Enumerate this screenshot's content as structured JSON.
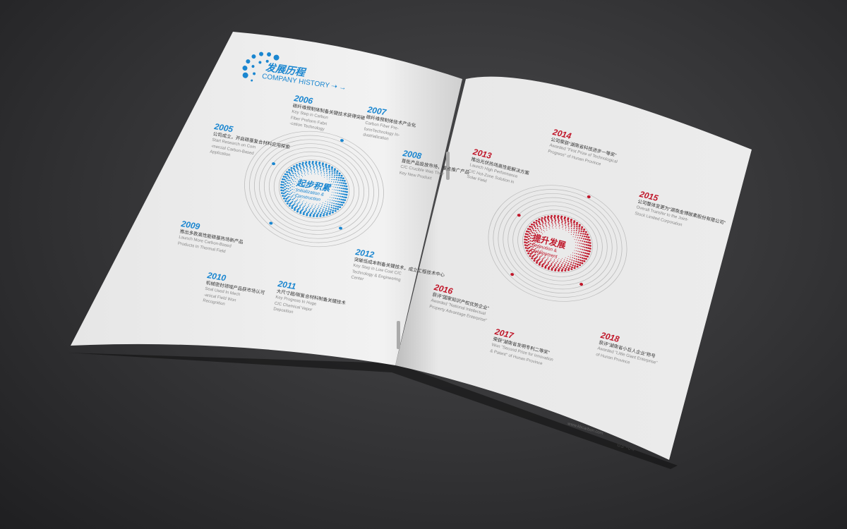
{
  "colors": {
    "blue": "#1a86d0",
    "red": "#c0172a",
    "paper": "#eeeeee",
    "background": "#333335"
  },
  "header": {
    "title_cn": "发展历程",
    "title_en": "COMPANY HISTORY",
    "arrow_icon": "arrow-right-icon"
  },
  "left_circle": {
    "cn": "起步积累",
    "en1": "Initialization &",
    "en2": "Construction"
  },
  "right_circle": {
    "cn": "提升发展",
    "en1": "Promotion &",
    "en2": "Development"
  },
  "milestones_left": [
    {
      "year": "2005",
      "cn": "公司成立，开启碳基复合材料应用探索",
      "en": [
        "Start Research on Com",
        "-mercial Carbon-Based",
        "Application"
      ]
    },
    {
      "year": "2006",
      "cn": "碳纤维预制体制备关键技术获得突破",
      "en": [
        "Key Step in Carbon",
        "Fiber Preform Fabri",
        "-cation Technology"
      ]
    },
    {
      "year": "2007",
      "cn": "碳纤维预制体技术产业化",
      "en": [
        "Carbon Fiber Pre-",
        "formTechnology In-",
        "dustrialization"
      ]
    },
    {
      "year": "2008",
      "cn": "首批产品投放市场，重点推广产品",
      "en": [
        "C/C Crucible Was Their",
        "Key New Product"
      ]
    },
    {
      "year": "2009",
      "cn": "推出多款高性能碳基热场新产品",
      "en": [
        "Launch More Carbon-Based",
        "Products In Thermal Field"
      ]
    },
    {
      "year": "2010",
      "cn": "机械密封领域产品获市场认可",
      "en": [
        "Seal Used In Mech",
        "-anical Field Won",
        "Recognition"
      ]
    },
    {
      "year": "2011",
      "cn": "大尺寸超/碳复合材料制备关键技术",
      "en": [
        "Key Progress In Huge",
        "C/C Chemical Vapor",
        "Deposition"
      ]
    },
    {
      "year": "2012",
      "cn": "突破低成本制备关键技术，成立工程技术中心",
      "en": [
        "Key Step in Low Cost C/C",
        "Technology & Engineering",
        "Center"
      ]
    }
  ],
  "milestones_right": [
    {
      "year": "2013",
      "cn": "推出光伏热场高性能解决方案",
      "en": [
        "Launch High Performance",
        "C/C Hot-Zone Solution in",
        "Solar Field"
      ]
    },
    {
      "year": "2014",
      "cn": "公司荣获“湖南省科技进步一等奖”",
      "en": [
        "Awarded \"First Prize of Technological",
        "Progress\" of Hunan Province"
      ]
    },
    {
      "year": "2015",
      "cn": "公司整体变更为“湖南金博碳素股份有限公司”",
      "en": [
        "Overall Transfer to the Joint-",
        "Stock Limited Corporation"
      ]
    },
    {
      "year": "2016",
      "cn": "获评“国家知识产权优势企业”",
      "en": [
        "Awarded \"National Intellectual",
        "Property Advantage Enterprise\""
      ]
    },
    {
      "year": "2017",
      "cn": "荣获“湖南省发明专利二等奖”",
      "en": [
        "Won \"Second Prize for Innovation",
        "& Patent\" of Hunan Province"
      ]
    },
    {
      "year": "2018",
      "cn": "获评“湖南省小巨人企业”称号",
      "en": [
        "Awarded \"Little Giant Enterprise\"",
        "of Hunan Province"
      ]
    }
  ],
  "footer": {
    "url": "www.kbcarbon.com",
    "brand": "KBC",
    "pages": "03 -04"
  }
}
